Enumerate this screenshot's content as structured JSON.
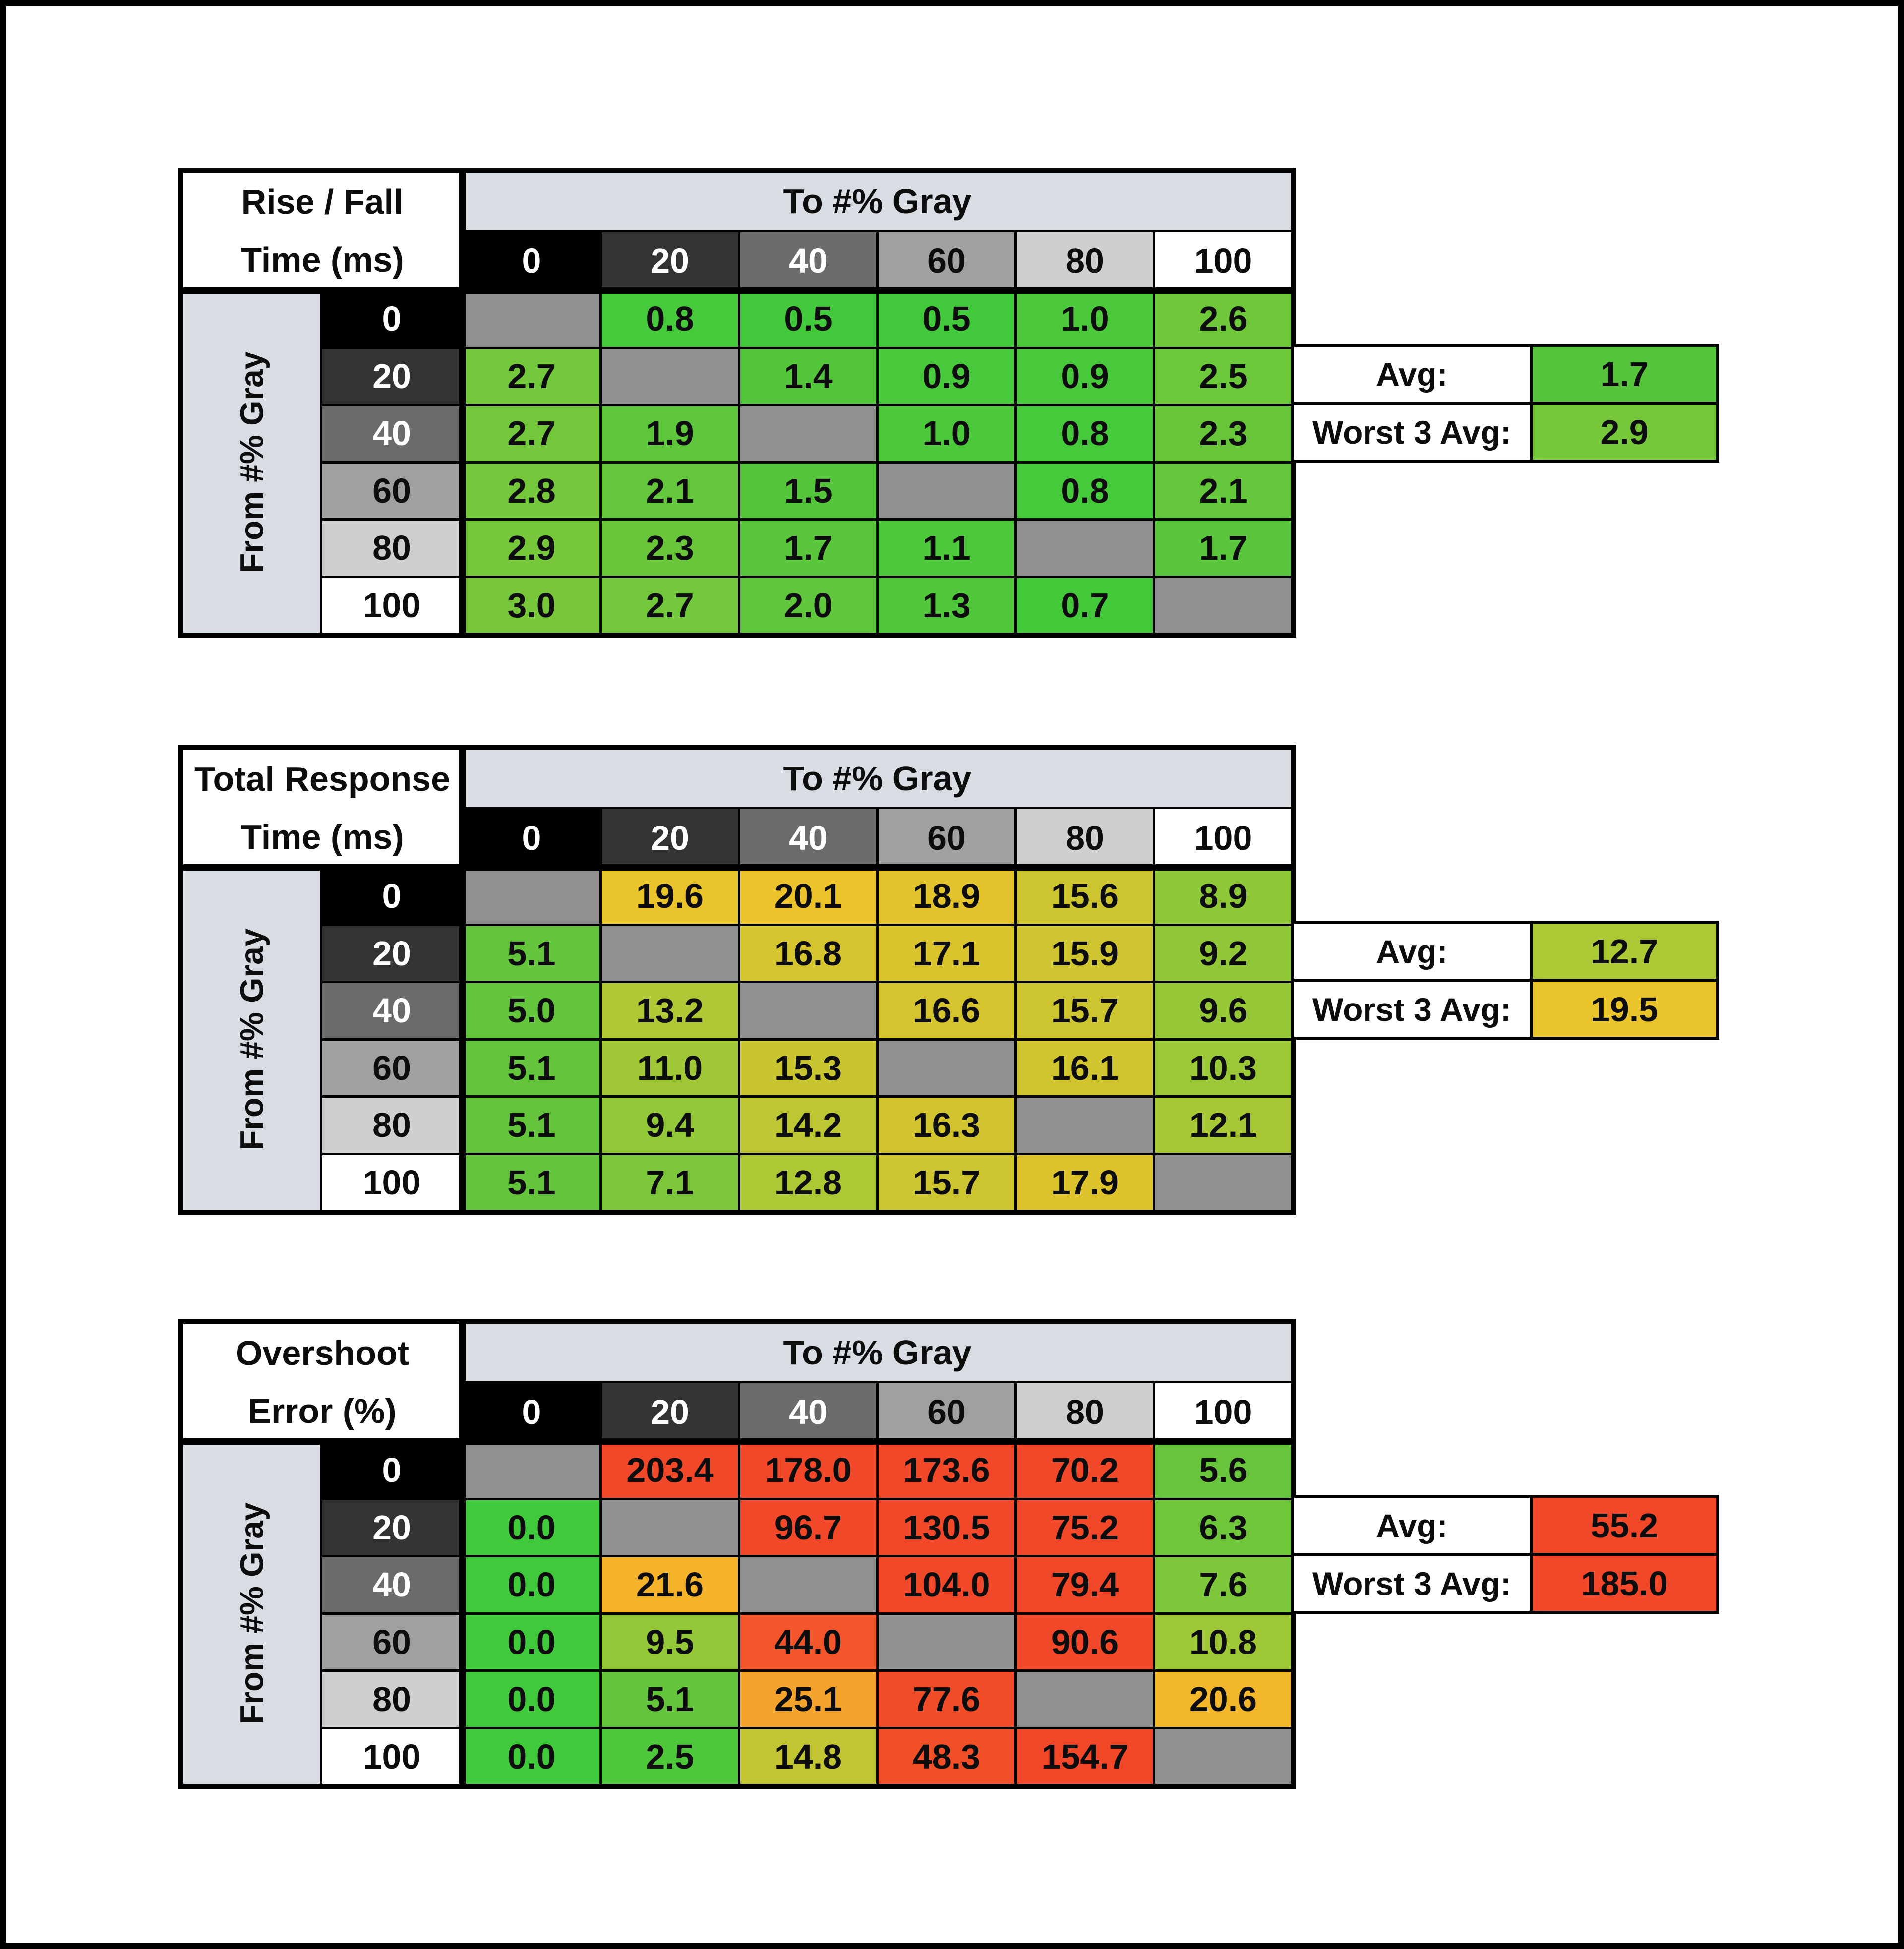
{
  "frame_color": "#000000",
  "styles": {
    "band_bg": "#D8DDE3",
    "diag_bg": "#909090",
    "grid_line": "#000000",
    "text_dark": "#0D0D0D",
    "text_light": "#FFFFFF"
  },
  "gray_scale": [
    {
      "label": "0",
      "bg": "#000000",
      "fg": "#FFFFFF"
    },
    {
      "label": "20",
      "bg": "#333333",
      "fg": "#FFFFFF"
    },
    {
      "label": "40",
      "bg": "#6B6B6B",
      "fg": "#FFFFFF"
    },
    {
      "label": "60",
      "bg": "#A0A0A0",
      "fg": "#0D0D0D"
    },
    {
      "label": "80",
      "bg": "#CFCFCF",
      "fg": "#0D0D0D"
    },
    {
      "label": "100",
      "bg": "#FFFFFF",
      "fg": "#0D0D0D"
    }
  ],
  "tables": [
    {
      "name": "rise-fall-time",
      "title_line1": "Rise / Fall",
      "title_line2": "Time (ms)",
      "col_group_label": "To #% Gray",
      "row_group_label": "From #% Gray",
      "cells": [
        [
          null,
          {
            "v": "0.8",
            "c": "#46C93B"
          },
          {
            "v": "0.5",
            "c": "#41C93B"
          },
          {
            "v": "0.5",
            "c": "#41C93B"
          },
          {
            "v": "1.0",
            "c": "#4BC93B"
          },
          {
            "v": "2.6",
            "c": "#6FC73A"
          }
        ],
        [
          {
            "v": "2.7",
            "c": "#72C73A"
          },
          null,
          {
            "v": "1.4",
            "c": "#53C63B"
          },
          {
            "v": "0.9",
            "c": "#48C93B"
          },
          {
            "v": "0.9",
            "c": "#48C93B"
          },
          {
            "v": "2.5",
            "c": "#6DC73A"
          }
        ],
        [
          {
            "v": "2.7",
            "c": "#72C73A"
          },
          {
            "v": "1.9",
            "c": "#5EC63B"
          },
          null,
          {
            "v": "1.0",
            "c": "#4BC93B"
          },
          {
            "v": "0.8",
            "c": "#46C93B"
          },
          {
            "v": "2.3",
            "c": "#69C63A"
          }
        ],
        [
          {
            "v": "2.8",
            "c": "#74C73A"
          },
          {
            "v": "2.1",
            "c": "#63C63B"
          },
          {
            "v": "1.5",
            "c": "#55C63B"
          },
          null,
          {
            "v": "0.8",
            "c": "#46C93B"
          },
          {
            "v": "2.1",
            "c": "#63C63B"
          }
        ],
        [
          {
            "v": "2.9",
            "c": "#76C73A"
          },
          {
            "v": "2.3",
            "c": "#69C63A"
          },
          {
            "v": "1.7",
            "c": "#59C63B"
          },
          {
            "v": "1.1",
            "c": "#4DC93B"
          },
          null,
          {
            "v": "1.7",
            "c": "#59C63B"
          }
        ],
        [
          {
            "v": "3.0",
            "c": "#78C73A"
          },
          {
            "v": "2.7",
            "c": "#72C73A"
          },
          {
            "v": "2.0",
            "c": "#60C63B"
          },
          {
            "v": "1.3",
            "c": "#51C73B"
          },
          {
            "v": "0.7",
            "c": "#44C93B"
          },
          null
        ]
      ],
      "summary": {
        "avg_label": "Avg:",
        "avg_value": "1.7",
        "avg_bg": "#56C53C",
        "worst_label": "Worst 3 Avg:",
        "worst_value": "2.9",
        "worst_bg": "#77C73A"
      }
    },
    {
      "name": "total-response-time",
      "title_line1": "Total Response",
      "title_line2": "Time (ms)",
      "col_group_label": "To #% Gray",
      "row_group_label": "From #% Gray",
      "cells": [
        [
          null,
          {
            "v": "19.6",
            "c": "#EAC42B"
          },
          {
            "v": "20.1",
            "c": "#ECC32B"
          },
          {
            "v": "18.9",
            "c": "#E4C42C"
          },
          {
            "v": "15.6",
            "c": "#CCC530"
          },
          {
            "v": "8.9",
            "c": "#8EC838"
          }
        ],
        [
          {
            "v": "5.1",
            "c": "#64C53C"
          },
          null,
          {
            "v": "16.8",
            "c": "#D6C42E"
          },
          {
            "v": "17.1",
            "c": "#D9C42D"
          },
          {
            "v": "15.9",
            "c": "#CEC530"
          },
          {
            "v": "9.2",
            "c": "#92C838"
          }
        ],
        [
          {
            "v": "5.0",
            "c": "#62C53C"
          },
          {
            "v": "13.2",
            "c": "#AFC835"
          },
          null,
          {
            "v": "16.6",
            "c": "#D5C42E"
          },
          {
            "v": "15.7",
            "c": "#CDC530"
          },
          {
            "v": "9.6",
            "c": "#96C838"
          }
        ],
        [
          {
            "v": "5.1",
            "c": "#64C53C"
          },
          {
            "v": "11.0",
            "c": "#A0C836"
          },
          {
            "v": "15.3",
            "c": "#C8C531"
          },
          null,
          {
            "v": "16.1",
            "c": "#D1C52F"
          },
          {
            "v": "10.3",
            "c": "#9BC837"
          }
        ],
        [
          {
            "v": "5.1",
            "c": "#64C53C"
          },
          {
            "v": "9.4",
            "c": "#93C838"
          },
          {
            "v": "14.2",
            "c": "#BCC733"
          },
          {
            "v": "16.3",
            "c": "#D2C42E"
          },
          null,
          {
            "v": "12.1",
            "c": "#A8C836"
          }
        ],
        [
          {
            "v": "5.1",
            "c": "#64C53C"
          },
          {
            "v": "7.1",
            "c": "#7CC73A"
          },
          {
            "v": "12.8",
            "c": "#ACC835"
          },
          {
            "v": "15.7",
            "c": "#CDC530"
          },
          {
            "v": "17.9",
            "c": "#DDC42C"
          },
          null
        ]
      ],
      "summary": {
        "avg_label": "Avg:",
        "avg_value": "12.7",
        "avg_bg": "#ABC835",
        "worst_label": "Worst 3 Avg:",
        "worst_value": "19.5",
        "worst_bg": "#EAC42B"
      }
    },
    {
      "name": "overshoot-error",
      "title_line1": "Overshoot",
      "title_line2": "Error (%)",
      "col_group_label": "To #% Gray",
      "row_group_label": "From #% Gray",
      "cells": [
        [
          null,
          {
            "v": "203.4",
            "c": "#F04828"
          },
          {
            "v": "178.0",
            "c": "#F04828"
          },
          {
            "v": "173.6",
            "c": "#F04828"
          },
          {
            "v": "70.2",
            "c": "#F04828"
          },
          {
            "v": "5.6",
            "c": "#68C53B"
          }
        ],
        [
          {
            "v": "0.0",
            "c": "#3FC93B"
          },
          null,
          {
            "v": "96.7",
            "c": "#F04828"
          },
          {
            "v": "130.5",
            "c": "#F04828"
          },
          {
            "v": "75.2",
            "c": "#F04828"
          },
          {
            "v": "6.3",
            "c": "#6FC63B"
          }
        ],
        [
          {
            "v": "0.0",
            "c": "#3FC93B"
          },
          {
            "v": "21.6",
            "c": "#F4B32B"
          },
          null,
          {
            "v": "104.0",
            "c": "#F04828"
          },
          {
            "v": "79.4",
            "c": "#F04828"
          },
          {
            "v": "7.6",
            "c": "#7EC73A"
          }
        ],
        [
          {
            "v": "0.0",
            "c": "#3FC93B"
          },
          {
            "v": "9.5",
            "c": "#94C838"
          },
          {
            "v": "44.0",
            "c": "#F2562A"
          },
          null,
          {
            "v": "90.6",
            "c": "#F04828"
          },
          {
            "v": "10.8",
            "c": "#9EC837"
          }
        ],
        [
          {
            "v": "0.0",
            "c": "#3FC93B"
          },
          {
            "v": "5.1",
            "c": "#64C53C"
          },
          {
            "v": "25.1",
            "c": "#F4A42C"
          },
          {
            "v": "77.6",
            "c": "#F14C28"
          },
          null,
          {
            "v": "20.6",
            "c": "#F3B72B"
          }
        ],
        [
          {
            "v": "0.0",
            "c": "#3FC93B"
          },
          {
            "v": "2.5",
            "c": "#4FC83B"
          },
          {
            "v": "14.8",
            "c": "#C2C632"
          },
          {
            "v": "48.3",
            "c": "#F14F28"
          },
          {
            "v": "154.7",
            "c": "#F04828"
          },
          null
        ]
      ],
      "summary": {
        "avg_label": "Avg:",
        "avg_value": "55.2",
        "avg_bg": "#F04828",
        "worst_label": "Worst 3 Avg:",
        "worst_value": "185.0",
        "worst_bg": "#F04828"
      }
    }
  ],
  "chart_data": [
    {
      "type": "heatmap",
      "title": "Rise / Fall Time (ms)",
      "xlabel": "To #% Gray",
      "ylabel": "From #% Gray",
      "x_categories": [
        0,
        20,
        40,
        60,
        80,
        100
      ],
      "y_categories": [
        0,
        20,
        40,
        60,
        80,
        100
      ],
      "rows": [
        [
          null,
          0.8,
          0.5,
          0.5,
          1.0,
          2.6
        ],
        [
          2.7,
          null,
          1.4,
          0.9,
          0.9,
          2.5
        ],
        [
          2.7,
          1.9,
          null,
          1.0,
          0.8,
          2.3
        ],
        [
          2.8,
          2.1,
          1.5,
          null,
          0.8,
          2.1
        ],
        [
          2.9,
          2.3,
          1.7,
          1.1,
          null,
          1.7
        ],
        [
          3.0,
          2.7,
          2.0,
          1.3,
          0.7,
          null
        ]
      ],
      "avg": 1.7,
      "worst_3_avg": 2.9,
      "color_scale": "green(low) to red(high)"
    },
    {
      "type": "heatmap",
      "title": "Total Response Time (ms)",
      "xlabel": "To #% Gray",
      "ylabel": "From #% Gray",
      "x_categories": [
        0,
        20,
        40,
        60,
        80,
        100
      ],
      "y_categories": [
        0,
        20,
        40,
        60,
        80,
        100
      ],
      "rows": [
        [
          null,
          19.6,
          20.1,
          18.9,
          15.6,
          8.9
        ],
        [
          5.1,
          null,
          16.8,
          17.1,
          15.9,
          9.2
        ],
        [
          5.0,
          13.2,
          null,
          16.6,
          15.7,
          9.6
        ],
        [
          5.1,
          11.0,
          15.3,
          null,
          16.1,
          10.3
        ],
        [
          5.1,
          9.4,
          14.2,
          16.3,
          null,
          12.1
        ],
        [
          5.1,
          7.1,
          12.8,
          15.7,
          17.9,
          null
        ]
      ],
      "avg": 12.7,
      "worst_3_avg": 19.5,
      "color_scale": "green(low) to red(high)"
    },
    {
      "type": "heatmap",
      "title": "Overshoot Error (%)",
      "xlabel": "To #% Gray",
      "ylabel": "From #% Gray",
      "x_categories": [
        0,
        20,
        40,
        60,
        80,
        100
      ],
      "y_categories": [
        0,
        20,
        40,
        60,
        80,
        100
      ],
      "rows": [
        [
          null,
          203.4,
          178.0,
          173.6,
          70.2,
          5.6
        ],
        [
          0.0,
          null,
          96.7,
          130.5,
          75.2,
          6.3
        ],
        [
          0.0,
          21.6,
          null,
          104.0,
          79.4,
          7.6
        ],
        [
          0.0,
          9.5,
          44.0,
          null,
          90.6,
          10.8
        ],
        [
          0.0,
          5.1,
          25.1,
          77.6,
          null,
          20.6
        ],
        [
          0.0,
          2.5,
          14.8,
          48.3,
          154.7,
          null
        ]
      ],
      "avg": 55.2,
      "worst_3_avg": 185.0,
      "color_scale": "green(low) to red(high)"
    }
  ]
}
